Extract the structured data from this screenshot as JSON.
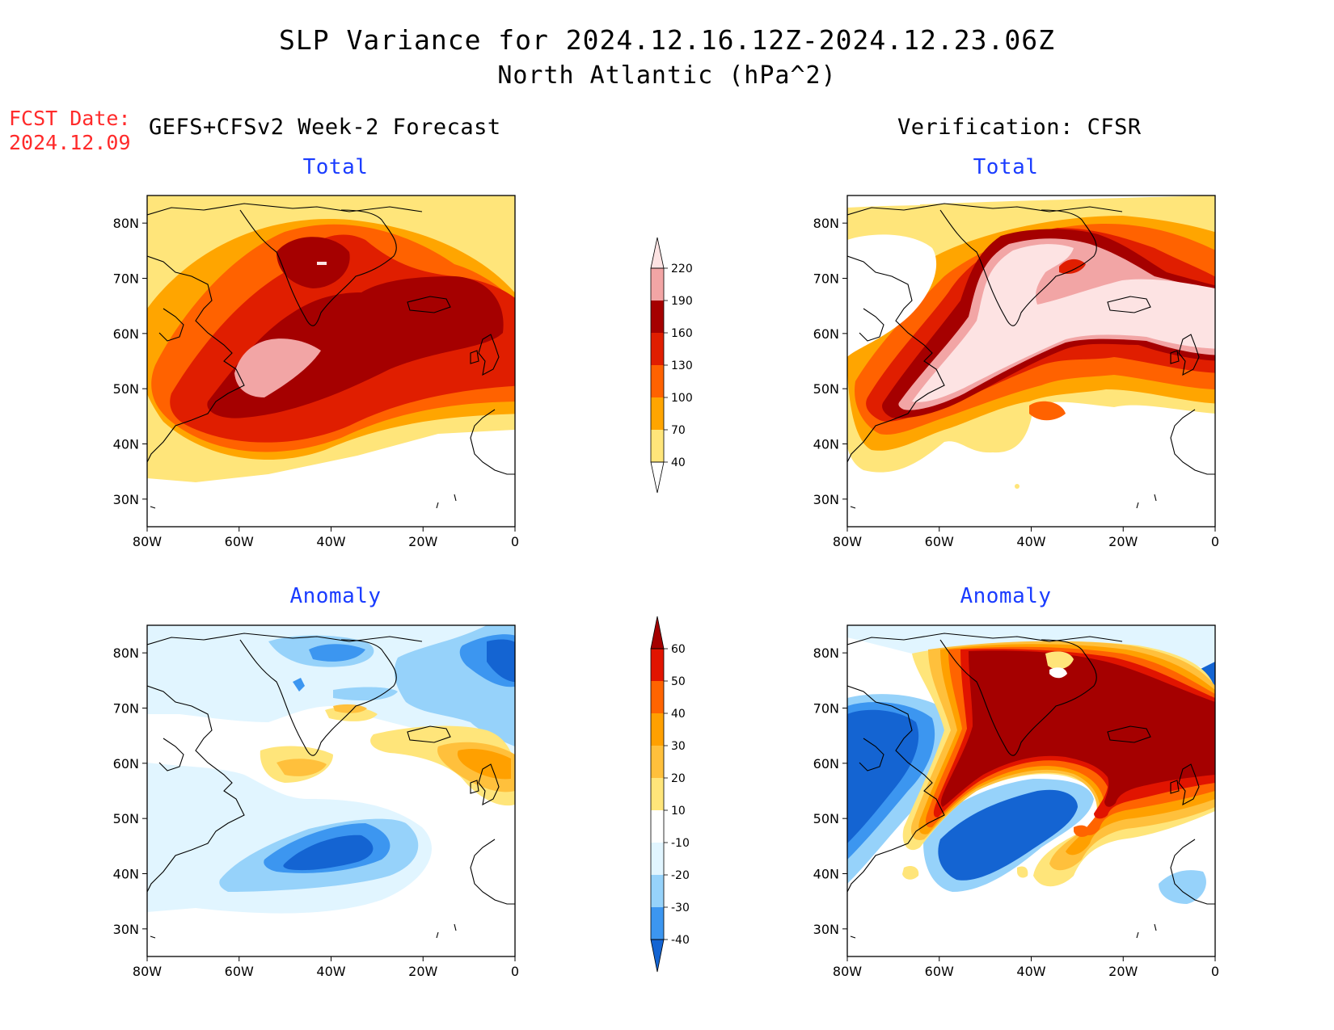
{
  "title": {
    "line1": "SLP Variance for 2024.12.16.12Z-2024.12.23.06Z",
    "line2": "North Atlantic (hPa^2)"
  },
  "fcst_date": {
    "label": "FCST Date:",
    "value": "2024.12.09"
  },
  "columns": {
    "left": "GEFS+CFSv2 Week-2 Forecast",
    "right": "Verification: CFSR"
  },
  "panel_titles": {
    "top_left": "Total",
    "top_right": "Total",
    "bottom_left": "Anomaly",
    "bottom_right": "Anomaly"
  },
  "axes": {
    "lat_ticks": [
      "80N",
      "70N",
      "60N",
      "50N",
      "40N",
      "30N"
    ],
    "lon_ticks": [
      "80W",
      "60W",
      "40W",
      "20W",
      "0"
    ],
    "lat_range": [
      25,
      85
    ],
    "lon_range": [
      -80,
      0
    ]
  },
  "colorbars": {
    "total": {
      "levels": [
        "40",
        "70",
        "100",
        "130",
        "160",
        "190",
        "220"
      ],
      "colors": [
        "#ffe57a",
        "#ffa500",
        "#ff6200",
        "#e01e00",
        "#a50000",
        "#f2a5a5",
        "#fde3e3"
      ]
    },
    "anomaly": {
      "levels": [
        "-40",
        "-30",
        "-20",
        "-10",
        "10",
        "20",
        "30",
        "40",
        "50",
        "60"
      ],
      "colors": [
        "#1464d2",
        "#3c96f0",
        "#96d2fa",
        "#e1f5ff",
        "#ffffff",
        "#ffe57a",
        "#ffc03c",
        "#ffa000",
        "#ff6400",
        "#e11400",
        "#a50000"
      ]
    }
  },
  "chart_data": [
    {
      "type": "heatmap",
      "title": "Total",
      "panel": "GEFS+CFSv2 Week-2 Forecast",
      "xlim": [
        -80,
        0
      ],
      "ylim": [
        25,
        85
      ],
      "features": [
        {
          "desc": "broad maximum band from Newfoundland to Iceland/British Isles",
          "lon": -45,
          "lat": 57,
          "peak": 170
        },
        {
          "desc": "local maximum off Newfoundland",
          "lon": -52,
          "lat": 51,
          "peak": 200
        },
        {
          "desc": "local maximum over central Greenland",
          "lon": -41,
          "lat": 73,
          "peak": 190
        }
      ]
    },
    {
      "type": "heatmap",
      "title": "Total",
      "panel": "Verification: CFSR",
      "xlim": [
        -80,
        0
      ],
      "ylim": [
        25,
        85
      ],
      "features": [
        {
          "desc": "very high variance band Newfoundland to Greenland and Iceland",
          "lon": -45,
          "lat": 60,
          "peak": 240
        }
      ]
    },
    {
      "type": "heatmap",
      "title": "Anomaly",
      "panel": "GEFS+CFSv2 Week-2 Forecast",
      "xlim": [
        -80,
        0
      ],
      "ylim": [
        25,
        85
      ],
      "features": [
        {
          "desc": "negative anomaly mid-Atlantic",
          "lon": -38,
          "lat": 43,
          "peak": -40
        },
        {
          "desc": "positive anomaly west of British Isles",
          "lon": -8,
          "lat": 56,
          "peak": 30
        },
        {
          "desc": "negative anomaly northeast corner",
          "lon": -5,
          "lat": 80,
          "peak": -40
        }
      ]
    },
    {
      "type": "heatmap",
      "title": "Anomaly",
      "panel": "Verification: CFSR",
      "xlim": [
        -80,
        0
      ],
      "ylim": [
        25,
        85
      ],
      "features": [
        {
          "desc": "strong positive anomaly Greenland to British Isles",
          "lon": -30,
          "lat": 65,
          "peak": 70
        },
        {
          "desc": "strong negative anomaly mid-Atlantic",
          "lon": -40,
          "lat": 44,
          "peak": -50
        },
        {
          "desc": "negative anomaly over eastern North America",
          "lon": -75,
          "lat": 55,
          "peak": -40
        }
      ]
    }
  ]
}
